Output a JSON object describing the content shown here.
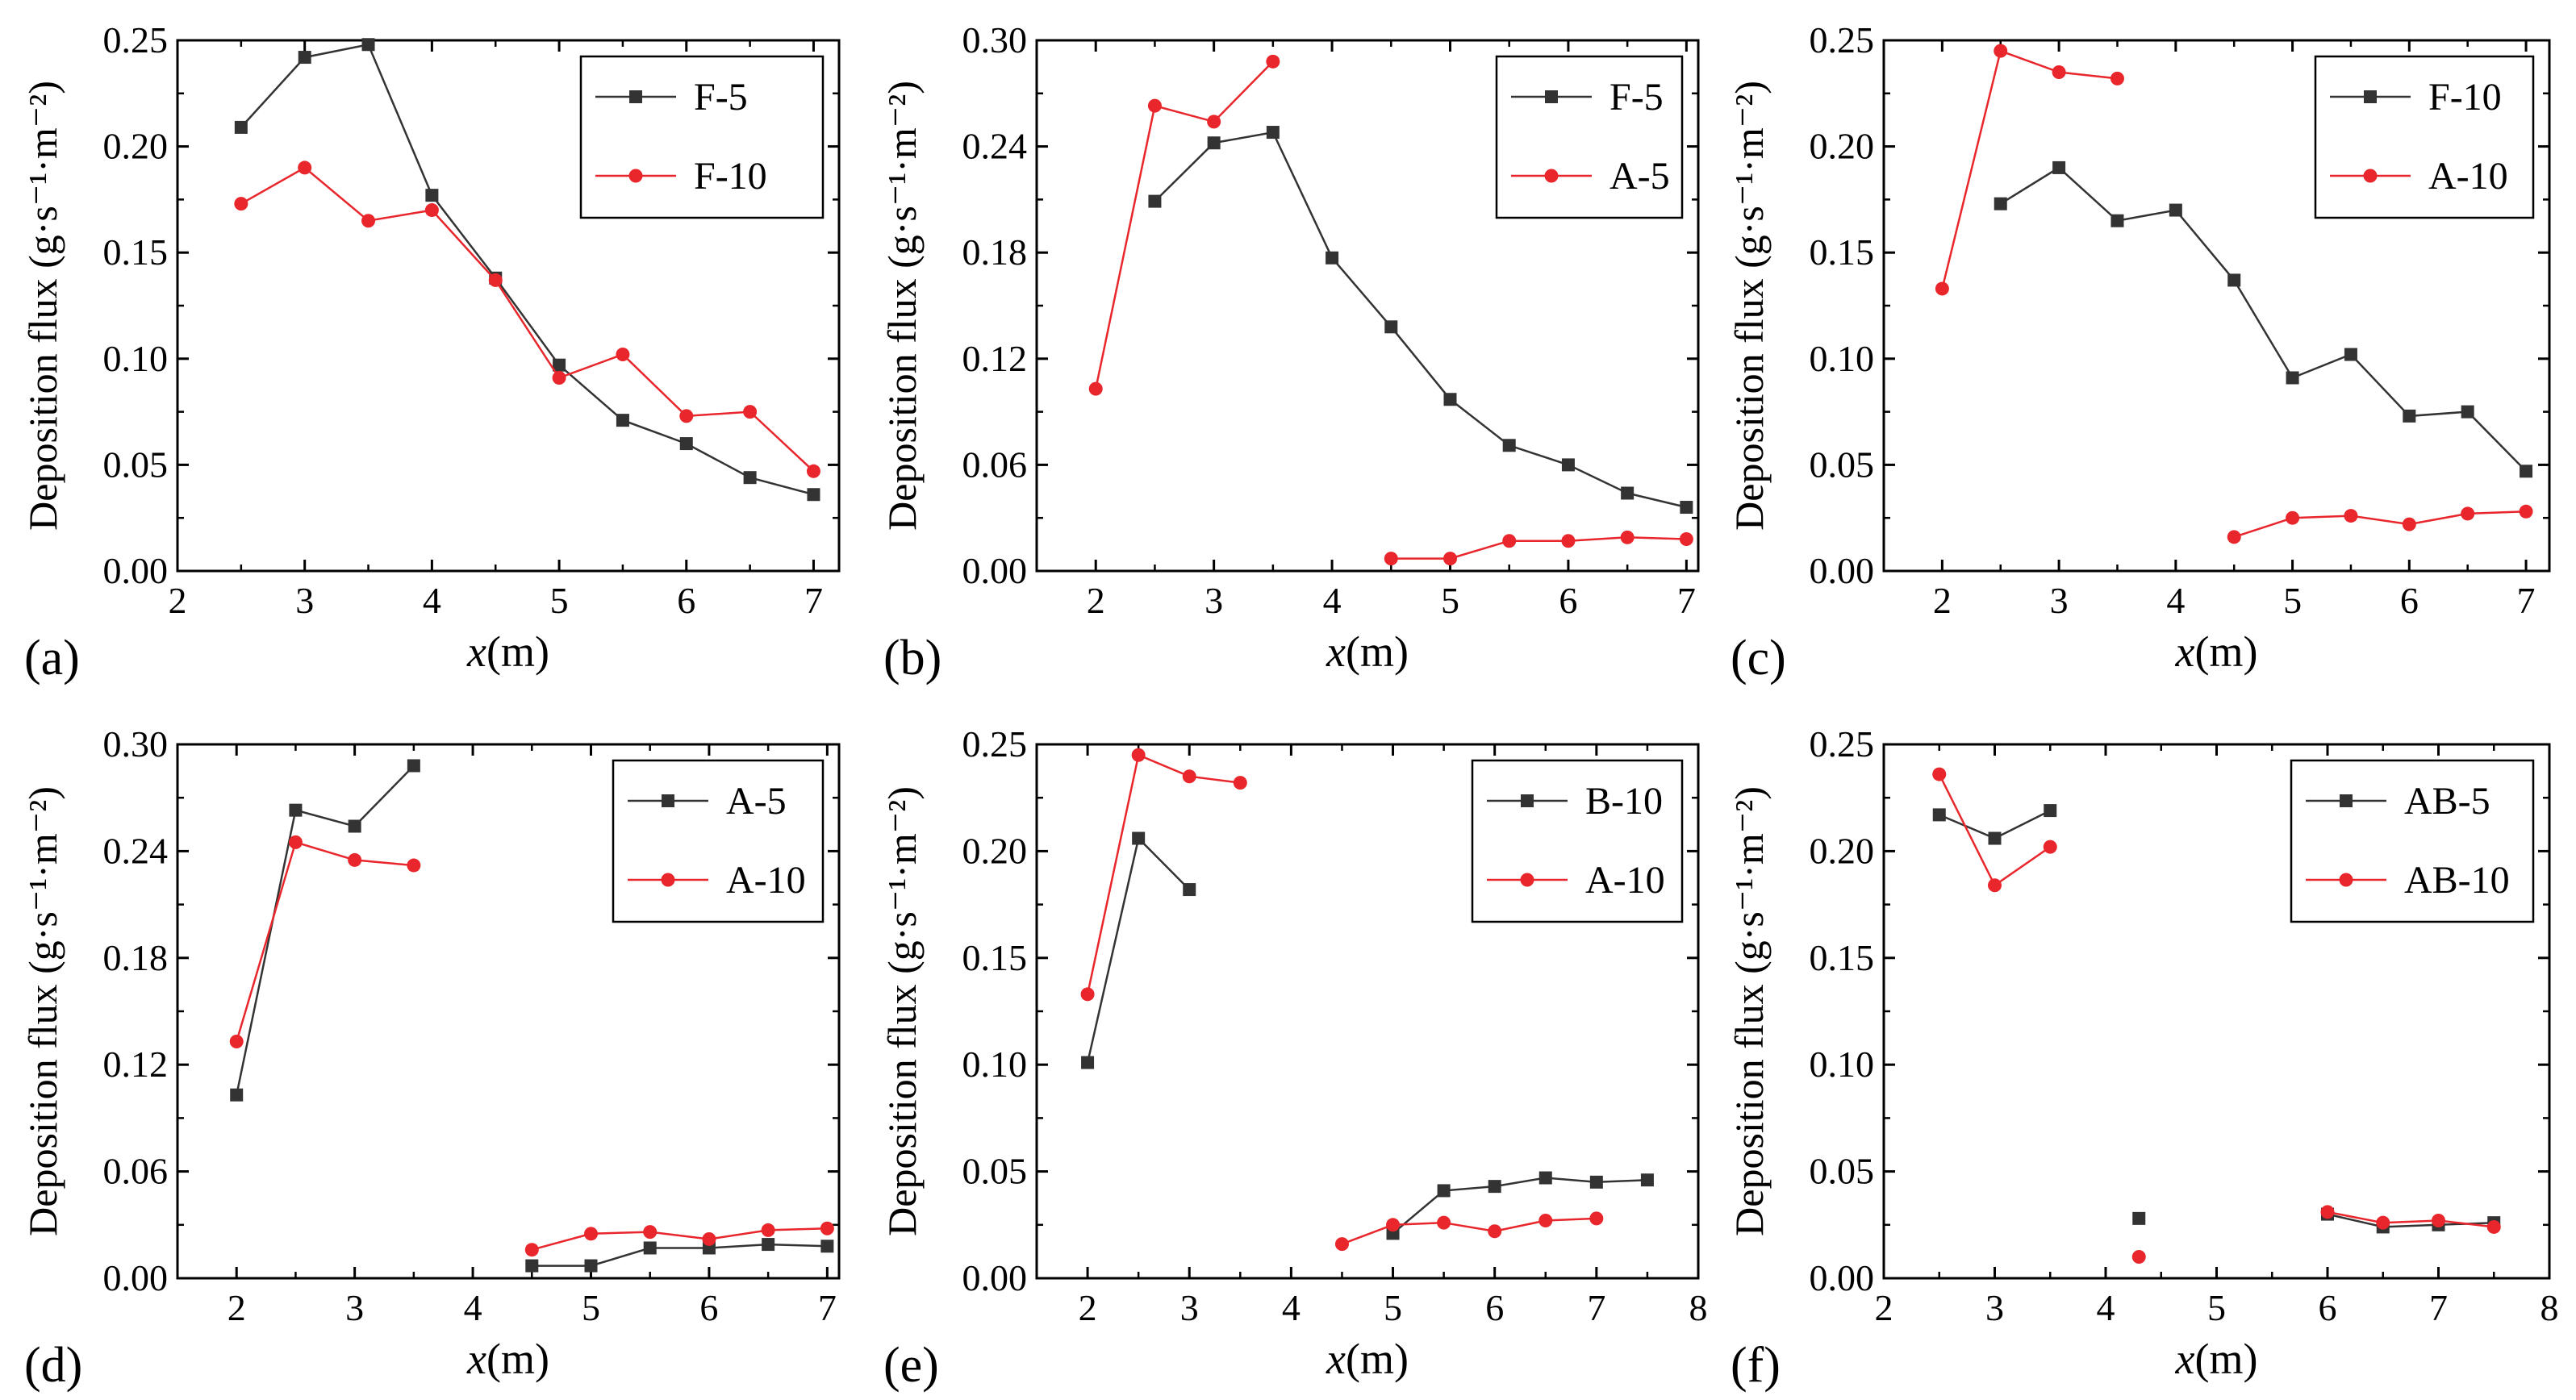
{
  "figure": {
    "ylabel_main": "Deposition flux",
    "ylabel_unit": "(g·s⁻¹·m⁻²)",
    "xlabel_italic": "x",
    "xlabel_unit": "(m)"
  },
  "colors": {
    "series_square": "#333333",
    "series_circle": "#e8262b",
    "axis": "#000000"
  },
  "chart_data": [
    {
      "type": "line",
      "panel_label": "(a)",
      "xlabel": "x(m)",
      "ylabel": "Deposition flux (g·s⁻¹·m⁻²)",
      "xlim": [
        2,
        7.2
      ],
      "ylim": [
        0,
        0.25
      ],
      "xticks": [
        2,
        3,
        4,
        5,
        6,
        7
      ],
      "yticks": [
        0,
        0.05,
        0.1,
        0.15,
        0.2,
        0.25
      ],
      "ytick_labels": [
        "0.00",
        "0.05",
        "0.10",
        "0.15",
        "0.20",
        "0.25"
      ],
      "legend_position": "top-right",
      "series": [
        {
          "name": "F-5",
          "marker": "square",
          "color": "#333333",
          "segments": [
            [
              [
                2.5,
                0.209
              ],
              [
                3.0,
                0.242
              ],
              [
                3.5,
                0.248
              ],
              [
                4.0,
                0.177
              ],
              [
                4.5,
                0.138
              ],
              [
                5.0,
                0.097
              ],
              [
                5.5,
                0.071
              ],
              [
                6.0,
                0.06
              ],
              [
                6.5,
                0.044
              ],
              [
                7.0,
                0.036
              ]
            ]
          ]
        },
        {
          "name": "F-10",
          "marker": "circle",
          "color": "#e8262b",
          "segments": [
            [
              [
                2.5,
                0.173
              ],
              [
                3.0,
                0.19
              ],
              [
                3.5,
                0.165
              ],
              [
                4.0,
                0.17
              ],
              [
                4.5,
                0.137
              ],
              [
                5.0,
                0.091
              ],
              [
                5.5,
                0.102
              ],
              [
                6.0,
                0.073
              ],
              [
                6.5,
                0.075
              ],
              [
                7.0,
                0.047
              ]
            ]
          ]
        }
      ]
    },
    {
      "type": "line",
      "panel_label": "(b)",
      "xlabel": "x(m)",
      "ylabel": "Deposition flux (g·s⁻¹·m⁻²)",
      "xlim": [
        1.5,
        7.1
      ],
      "ylim": [
        0,
        0.3
      ],
      "xticks": [
        2,
        3,
        4,
        5,
        6,
        7
      ],
      "yticks": [
        0,
        0.06,
        0.12,
        0.18,
        0.24,
        0.3
      ],
      "ytick_labels": [
        "0.00",
        "0.06",
        "0.12",
        "0.18",
        "0.24",
        "0.30"
      ],
      "legend_position": "top-right",
      "series": [
        {
          "name": "F-5",
          "marker": "square",
          "color": "#333333",
          "segments": [
            [
              [
                2.5,
                0.209
              ],
              [
                3.0,
                0.242
              ],
              [
                3.5,
                0.248
              ],
              [
                4.0,
                0.177
              ],
              [
                4.5,
                0.138
              ],
              [
                5.0,
                0.097
              ],
              [
                5.5,
                0.071
              ],
              [
                6.0,
                0.06
              ],
              [
                6.5,
                0.044
              ],
              [
                7.0,
                0.036
              ]
            ]
          ]
        },
        {
          "name": "A-5",
          "marker": "circle",
          "color": "#e8262b",
          "segments": [
            [
              [
                2.0,
                0.103
              ],
              [
                2.5,
                0.263
              ],
              [
                3.0,
                0.254
              ],
              [
                3.5,
                0.288
              ]
            ],
            [
              [
                4.5,
                0.007
              ],
              [
                5.0,
                0.007
              ],
              [
                5.5,
                0.017
              ],
              [
                6.0,
                0.017
              ],
              [
                6.5,
                0.019
              ],
              [
                7.0,
                0.018
              ]
            ]
          ]
        }
      ]
    },
    {
      "type": "line",
      "panel_label": "(c)",
      "xlabel": "x(m)",
      "ylabel": "Deposition flux (g·s⁻¹·m⁻²)",
      "xlim": [
        1.5,
        7.2
      ],
      "ylim": [
        0,
        0.25
      ],
      "xticks": [
        2,
        3,
        4,
        5,
        6,
        7
      ],
      "yticks": [
        0,
        0.05,
        0.1,
        0.15,
        0.2,
        0.25
      ],
      "ytick_labels": [
        "0.00",
        "0.05",
        "0.10",
        "0.15",
        "0.20",
        "0.25"
      ],
      "legend_position": "top-right",
      "series": [
        {
          "name": "F-10",
          "marker": "square",
          "color": "#333333",
          "segments": [
            [
              [
                2.5,
                0.173
              ],
              [
                3.0,
                0.19
              ],
              [
                3.5,
                0.165
              ],
              [
                4.0,
                0.17
              ],
              [
                4.5,
                0.137
              ],
              [
                5.0,
                0.091
              ],
              [
                5.5,
                0.102
              ],
              [
                6.0,
                0.073
              ],
              [
                6.5,
                0.075
              ],
              [
                7.0,
                0.047
              ]
            ]
          ]
        },
        {
          "name": "A-10",
          "marker": "circle",
          "color": "#e8262b",
          "segments": [
            [
              [
                2.0,
                0.133
              ],
              [
                2.5,
                0.245
              ],
              [
                3.0,
                0.235
              ],
              [
                3.5,
                0.232
              ]
            ],
            [
              [
                4.5,
                0.016
              ],
              [
                5.0,
                0.025
              ],
              [
                5.5,
                0.026
              ],
              [
                6.0,
                0.022
              ],
              [
                6.5,
                0.027
              ],
              [
                7.0,
                0.028
              ]
            ]
          ]
        }
      ]
    },
    {
      "type": "line",
      "panel_label": "(d)",
      "xlabel": "x(m)",
      "ylabel": "Deposition flux (g·s⁻¹·m⁻²)",
      "xlim": [
        1.5,
        7.1
      ],
      "ylim": [
        0,
        0.3
      ],
      "xticks": [
        2,
        3,
        4,
        5,
        6,
        7
      ],
      "yticks": [
        0,
        0.06,
        0.12,
        0.18,
        0.24,
        0.3
      ],
      "ytick_labels": [
        "0.00",
        "0.06",
        "0.12",
        "0.18",
        "0.24",
        "0.30"
      ],
      "legend_position": "top-right",
      "series": [
        {
          "name": "A-5",
          "marker": "square",
          "color": "#333333",
          "segments": [
            [
              [
                2.0,
                0.103
              ],
              [
                2.5,
                0.263
              ],
              [
                3.0,
                0.254
              ],
              [
                3.5,
                0.288
              ]
            ],
            [
              [
                4.5,
                0.007
              ],
              [
                5.0,
                0.007
              ],
              [
                5.5,
                0.017
              ],
              [
                6.0,
                0.017
              ],
              [
                6.5,
                0.019
              ],
              [
                7.0,
                0.018
              ]
            ]
          ]
        },
        {
          "name": "A-10",
          "marker": "circle",
          "color": "#e8262b",
          "segments": [
            [
              [
                2.0,
                0.133
              ],
              [
                2.5,
                0.245
              ],
              [
                3.0,
                0.235
              ],
              [
                3.5,
                0.232
              ]
            ],
            [
              [
                4.5,
                0.016
              ],
              [
                5.0,
                0.025
              ],
              [
                5.5,
                0.026
              ],
              [
                6.0,
                0.022
              ],
              [
                6.5,
                0.027
              ],
              [
                7.0,
                0.028
              ]
            ]
          ]
        }
      ]
    },
    {
      "type": "line",
      "panel_label": "(e)",
      "xlabel": "x(m)",
      "ylabel": "Deposition flux (g·s⁻¹·m⁻²)",
      "xlim": [
        1.5,
        8
      ],
      "ylim": [
        0,
        0.25
      ],
      "xticks": [
        2,
        3,
        4,
        5,
        6,
        7,
        8
      ],
      "yticks": [
        0,
        0.05,
        0.1,
        0.15,
        0.2,
        0.25
      ],
      "ytick_labels": [
        "0.00",
        "0.05",
        "0.10",
        "0.15",
        "0.20",
        "0.25"
      ],
      "legend_position": "top-right",
      "series": [
        {
          "name": "B-10",
          "marker": "square",
          "color": "#333333",
          "segments": [
            [
              [
                2.0,
                0.101
              ],
              [
                2.5,
                0.206
              ],
              [
                3.0,
                0.182
              ]
            ],
            [
              [
                5.0,
                0.021
              ],
              [
                5.5,
                0.041
              ],
              [
                6.0,
                0.043
              ],
              [
                6.5,
                0.047
              ],
              [
                7.0,
                0.045
              ],
              [
                7.5,
                0.046
              ]
            ]
          ]
        },
        {
          "name": "A-10",
          "marker": "circle",
          "color": "#e8262b",
          "segments": [
            [
              [
                2.0,
                0.133
              ],
              [
                2.5,
                0.245
              ],
              [
                3.0,
                0.235
              ],
              [
                3.5,
                0.232
              ]
            ],
            [
              [
                4.5,
                0.016
              ],
              [
                5.0,
                0.025
              ],
              [
                5.5,
                0.026
              ],
              [
                6.0,
                0.022
              ],
              [
                6.5,
                0.027
              ],
              [
                7.0,
                0.028
              ]
            ]
          ]
        }
      ]
    },
    {
      "type": "line",
      "panel_label": "(f)",
      "xlabel": "x(m)",
      "ylabel": "Deposition flux (g·s⁻¹·m⁻²)",
      "xlim": [
        2,
        8
      ],
      "ylim": [
        0,
        0.25
      ],
      "xticks": [
        2,
        3,
        4,
        5,
        6,
        7,
        8
      ],
      "yticks": [
        0,
        0.05,
        0.1,
        0.15,
        0.2,
        0.25
      ],
      "ytick_labels": [
        "0.00",
        "0.05",
        "0.10",
        "0.15",
        "0.20",
        "0.25"
      ],
      "legend_position": "top-right",
      "series": [
        {
          "name": "AB-5",
          "marker": "square",
          "color": "#333333",
          "segments": [
            [
              [
                2.5,
                0.217
              ],
              [
                3.0,
                0.206
              ],
              [
                3.5,
                0.219
              ]
            ],
            [
              [
                4.3,
                0.028
              ]
            ],
            [
              [
                6.0,
                0.03
              ],
              [
                6.5,
                0.024
              ],
              [
                7.0,
                0.025
              ],
              [
                7.5,
                0.026
              ]
            ]
          ]
        },
        {
          "name": "AB-10",
          "marker": "circle",
          "color": "#e8262b",
          "segments": [
            [
              [
                2.5,
                0.236
              ],
              [
                3.0,
                0.184
              ],
              [
                3.5,
                0.202
              ]
            ],
            [
              [
                4.3,
                0.01
              ]
            ],
            [
              [
                6.0,
                0.031
              ],
              [
                6.5,
                0.026
              ],
              [
                7.0,
                0.027
              ],
              [
                7.5,
                0.024
              ]
            ]
          ]
        }
      ]
    }
  ]
}
